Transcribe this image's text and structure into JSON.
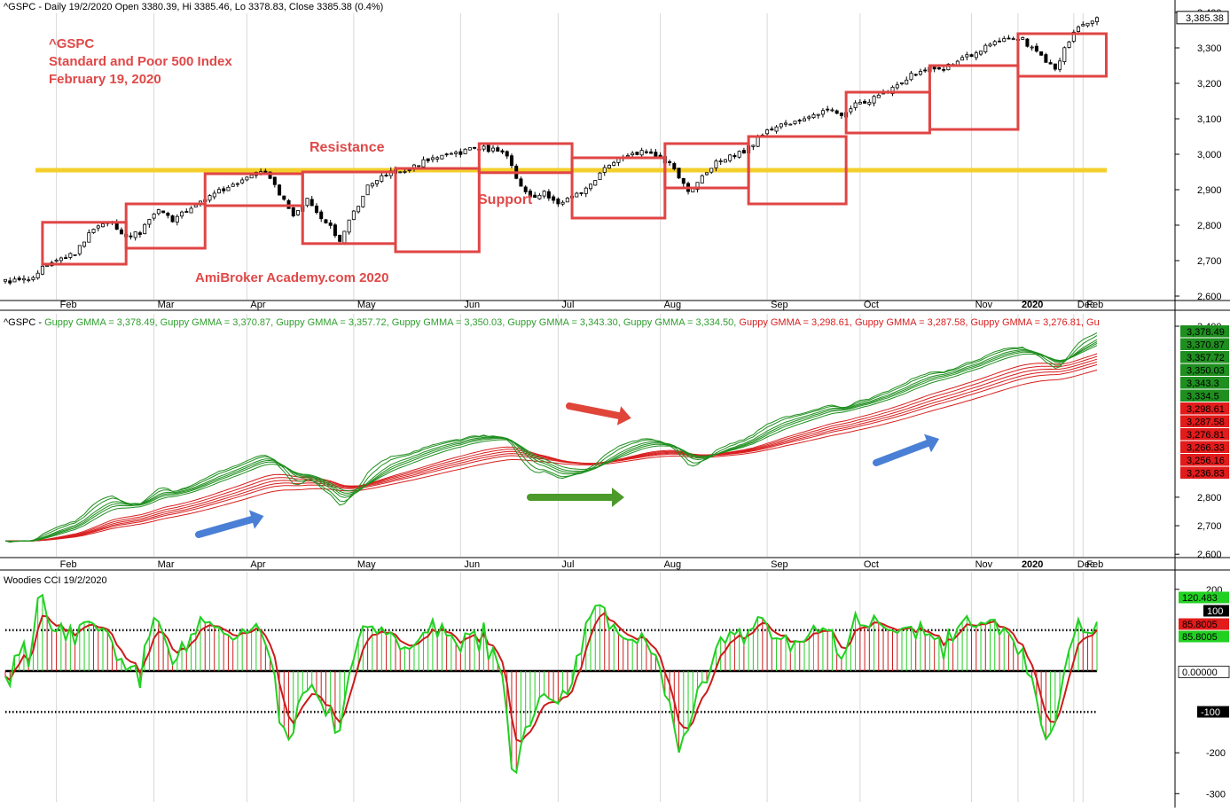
{
  "panes": {
    "price": {
      "header": "^GSPC - Daily 19/2/2020 Open 3380.39, Hi 3385.46, Lo 3378.83, Close 3385.38 (0.4%)",
      "annotation_lines": [
        "^GSPC",
        "Standard and Poor 500 Index",
        "February 19, 2020"
      ],
      "resistance_label": "Resistance",
      "support_label": "Support",
      "watermark": "AmiBroker Academy.com   2020",
      "last_price_label": "3,385.38",
      "y_ticks": [
        "3,400",
        "3,300",
        "3,200",
        "3,100",
        "3,000",
        "2,900",
        "2,800",
        "2,700",
        "2,600"
      ],
      "month_labels": [
        "Feb",
        "Mar",
        "Apr",
        "May",
        "Jun",
        "Jul",
        "Aug",
        "Sep",
        "Oct",
        "Nov",
        "Dec",
        "2020",
        "Feb"
      ]
    },
    "gmma": {
      "header_prefix": "^GSPC - ",
      "header_items": [
        {
          "text": "Guppy GMMA = 3,378.49,",
          "color": "#2e9e2e"
        },
        {
          "text": "Guppy GMMA = 3,370.87,",
          "color": "#2e9e2e"
        },
        {
          "text": "Guppy GMMA = 3,357.72,",
          "color": "#2e9e2e"
        },
        {
          "text": "Guppy GMMA = 3,350.03,",
          "color": "#2e9e2e"
        },
        {
          "text": "Guppy GMMA = 3,343.30,",
          "color": "#2e9e2e"
        },
        {
          "text": "Guppy GMMA = 3,334.50,",
          "color": "#2e9e2e"
        },
        {
          "text": "Guppy GMMA = 3,298.61,",
          "color": "#d81e1e"
        },
        {
          "text": "Guppy GMMA = 3,287.58,",
          "color": "#d81e1e"
        },
        {
          "text": "Guppy GMMA = 3,276.81,",
          "color": "#d81e1e"
        },
        {
          "text": "Gu",
          "color": "#d81e1e"
        }
      ],
      "y_ticks": [
        "3,400",
        "2,800",
        "2,700",
        "2,600"
      ],
      "value_labels": [
        {
          "text": "3,378.49",
          "color": "#1f8f1f"
        },
        {
          "text": "3,370.87",
          "color": "#1f8f1f"
        },
        {
          "text": "3,357.72",
          "color": "#1f8f1f"
        },
        {
          "text": "3,350.03",
          "color": "#1f8f1f"
        },
        {
          "text": "3,343.3",
          "color": "#1f8f1f"
        },
        {
          "text": "3,334.5",
          "color": "#1f8f1f"
        },
        {
          "text": "3,298.61",
          "color": "#e21b1b"
        },
        {
          "text": "3,287.58",
          "color": "#e21b1b"
        },
        {
          "text": "3,276.81",
          "color": "#e21b1b"
        },
        {
          "text": "3,266.33",
          "color": "#e21b1b"
        },
        {
          "text": "3,256.16",
          "color": "#e21b1b"
        },
        {
          "text": "3,236.83",
          "color": "#e21b1b"
        }
      ],
      "month_labels": [
        "Feb",
        "Mar",
        "Apr",
        "May",
        "Jun",
        "Jul",
        "Aug",
        "Sep",
        "Oct",
        "Nov",
        "Dec",
        "2020",
        "Feb"
      ]
    },
    "cci": {
      "header": "Woodies CCI  19/2/2020",
      "y_ticks": [
        "200",
        "-200",
        "-300"
      ],
      "value_labels": [
        {
          "text": "120.483",
          "bg": "#22d022",
          "fg": "#000000"
        },
        {
          "text": "100",
          "bg": "#000000",
          "fg": "#ffffff"
        },
        {
          "text": "85.8005",
          "bg": "#e21b1b",
          "fg": "#000000"
        },
        {
          "text": "85.8005",
          "bg": "#22d022",
          "fg": "#000000"
        },
        {
          "text": "0.00000",
          "bg": "#ffffff",
          "fg": "#000000"
        },
        {
          "text": "-100",
          "bg": "#000000",
          "fg": "#ffffff"
        }
      ]
    }
  },
  "colors": {
    "up_candle": "#ffffff",
    "down_candle": "#000000",
    "annotation_red": "#e04848",
    "box_red": "#e04545",
    "support_line": "#f4cf2b",
    "gmma_short": "#1f8f1f",
    "gmma_long": "#d81e1e",
    "cci_green": "#22d022",
    "cci_red": "#cc1b1b",
    "arrow_blue": "#4a7fd6",
    "arrow_red": "#e0453a",
    "arrow_green": "#4c9a2a"
  },
  "chart_data": [
    {
      "type": "candlestick",
      "title": "^GSPC - Daily 19/2/2020 Open 3380.39, Hi 3385.46, Lo 3378.83, Close 3385.38 (0.4%)",
      "x_labels": [
        "Feb",
        "Mar",
        "Apr",
        "May",
        "Jun",
        "Jul",
        "Aug",
        "Sep",
        "Oct",
        "Nov",
        "Dec",
        "2020",
        "Feb"
      ],
      "ylim": [
        2590,
        3410
      ],
      "horizontal_line": {
        "label": "Support / Resistance",
        "value": 2955
      },
      "close_path": [
        [
          0,
          2640
        ],
        [
          5,
          2645
        ],
        [
          10,
          2700
        ],
        [
          15,
          2720
        ],
        [
          19,
          2790
        ],
        [
          23,
          2805
        ],
        [
          26,
          2770
        ],
        [
          29,
          2780
        ],
        [
          33,
          2840
        ],
        [
          36,
          2815
        ],
        [
          40,
          2850
        ],
        [
          44,
          2880
        ],
        [
          48,
          2910
        ],
        [
          52,
          2935
        ],
        [
          56,
          2950
        ],
        [
          59,
          2890
        ],
        [
          62,
          2830
        ],
        [
          65,
          2870
        ],
        [
          69,
          2810
        ],
        [
          72,
          2760
        ],
        [
          74,
          2810
        ],
        [
          78,
          2910
        ],
        [
          82,
          2945
        ],
        [
          86,
          2955
        ],
        [
          90,
          2980
        ],
        [
          94,
          2995
        ],
        [
          98,
          3005
        ],
        [
          102,
          3018
        ],
        [
          105,
          3012
        ],
        [
          108,
          3000
        ],
        [
          110,
          2925
        ],
        [
          113,
          2880
        ],
        [
          116,
          2895
        ],
        [
          119,
          2860
        ],
        [
          122,
          2885
        ],
        [
          125,
          2900
        ],
        [
          128,
          2945
        ],
        [
          131,
          2980
        ],
        [
          134,
          2995
        ],
        [
          137,
          3005
        ],
        [
          140,
          2995
        ],
        [
          143,
          2975
        ],
        [
          145,
          2930
        ],
        [
          147,
          2895
        ],
        [
          150,
          2935
        ],
        [
          153,
          2975
        ],
        [
          156,
          2995
        ],
        [
          159,
          3005
        ],
        [
          162,
          3045
        ],
        [
          165,
          3070
        ],
        [
          168,
          3085
        ],
        [
          171,
          3093
        ],
        [
          174,
          3110
        ],
        [
          177,
          3128
        ],
        [
          180,
          3110
        ],
        [
          183,
          3140
        ],
        [
          186,
          3150
        ],
        [
          189,
          3170
        ],
        [
          192,
          3198
        ],
        [
          195,
          3225
        ],
        [
          198,
          3240
        ],
        [
          201,
          3237
        ],
        [
          204,
          3255
        ],
        [
          207,
          3275
        ],
        [
          210,
          3295
        ],
        [
          213,
          3315
        ],
        [
          216,
          3330
        ],
        [
          219,
          3322
        ],
        [
          222,
          3285
        ],
        [
          224,
          3265
        ],
        [
          226,
          3240
        ],
        [
          228,
          3300
        ],
        [
          230,
          3345
        ],
        [
          233,
          3370
        ],
        [
          235,
          3385
        ]
      ],
      "boxes": [
        {
          "from_bar": 8,
          "to_bar": 26,
          "low": 2690,
          "high": 2808
        },
        {
          "from_bar": 26,
          "to_bar": 43,
          "low": 2735,
          "high": 2860
        },
        {
          "from_bar": 43,
          "to_bar": 64,
          "low": 2855,
          "high": 2945
        },
        {
          "from_bar": 64,
          "to_bar": 84,
          "low": 2748,
          "high": 2950
        },
        {
          "from_bar": 84,
          "to_bar": 102,
          "low": 2725,
          "high": 2960
        },
        {
          "from_bar": 102,
          "to_bar": 122,
          "low": 2948,
          "high": 3030
        },
        {
          "from_bar": 122,
          "to_bar": 142,
          "low": 2820,
          "high": 2990
        },
        {
          "from_bar": 142,
          "to_bar": 160,
          "low": 2905,
          "high": 3030
        },
        {
          "from_bar": 160,
          "to_bar": 181,
          "low": 2860,
          "high": 3050
        },
        {
          "from_bar": 181,
          "to_bar": 199,
          "low": 3060,
          "high": 3175
        },
        {
          "from_bar": 199,
          "to_bar": 218,
          "low": 3070,
          "high": 3250
        },
        {
          "from_bar": 218,
          "to_bar": 237,
          "low": 3220,
          "high": 3340
        }
      ]
    },
    {
      "type": "line",
      "title": "Guppy GMMA",
      "ylim": [
        2590,
        3410
      ],
      "series": [
        {
          "values_at_last_bar": [
            3378.49,
            3370.87,
            3357.72,
            3350.03,
            3343.3,
            3334.5
          ]
        },
        {
          "values_at_last_bar": [
            3298.61,
            3287.58,
            3276.81,
            3266.33,
            3256.16,
            3236.83
          ]
        }
      ]
    },
    {
      "type": "line",
      "title": "Woodies CCI  19/2/2020",
      "ylim": [
        -320,
        230
      ],
      "reference_lines": [
        100,
        0,
        -100
      ],
      "last_values": [
        120.483,
        85.8005
      ]
    }
  ]
}
